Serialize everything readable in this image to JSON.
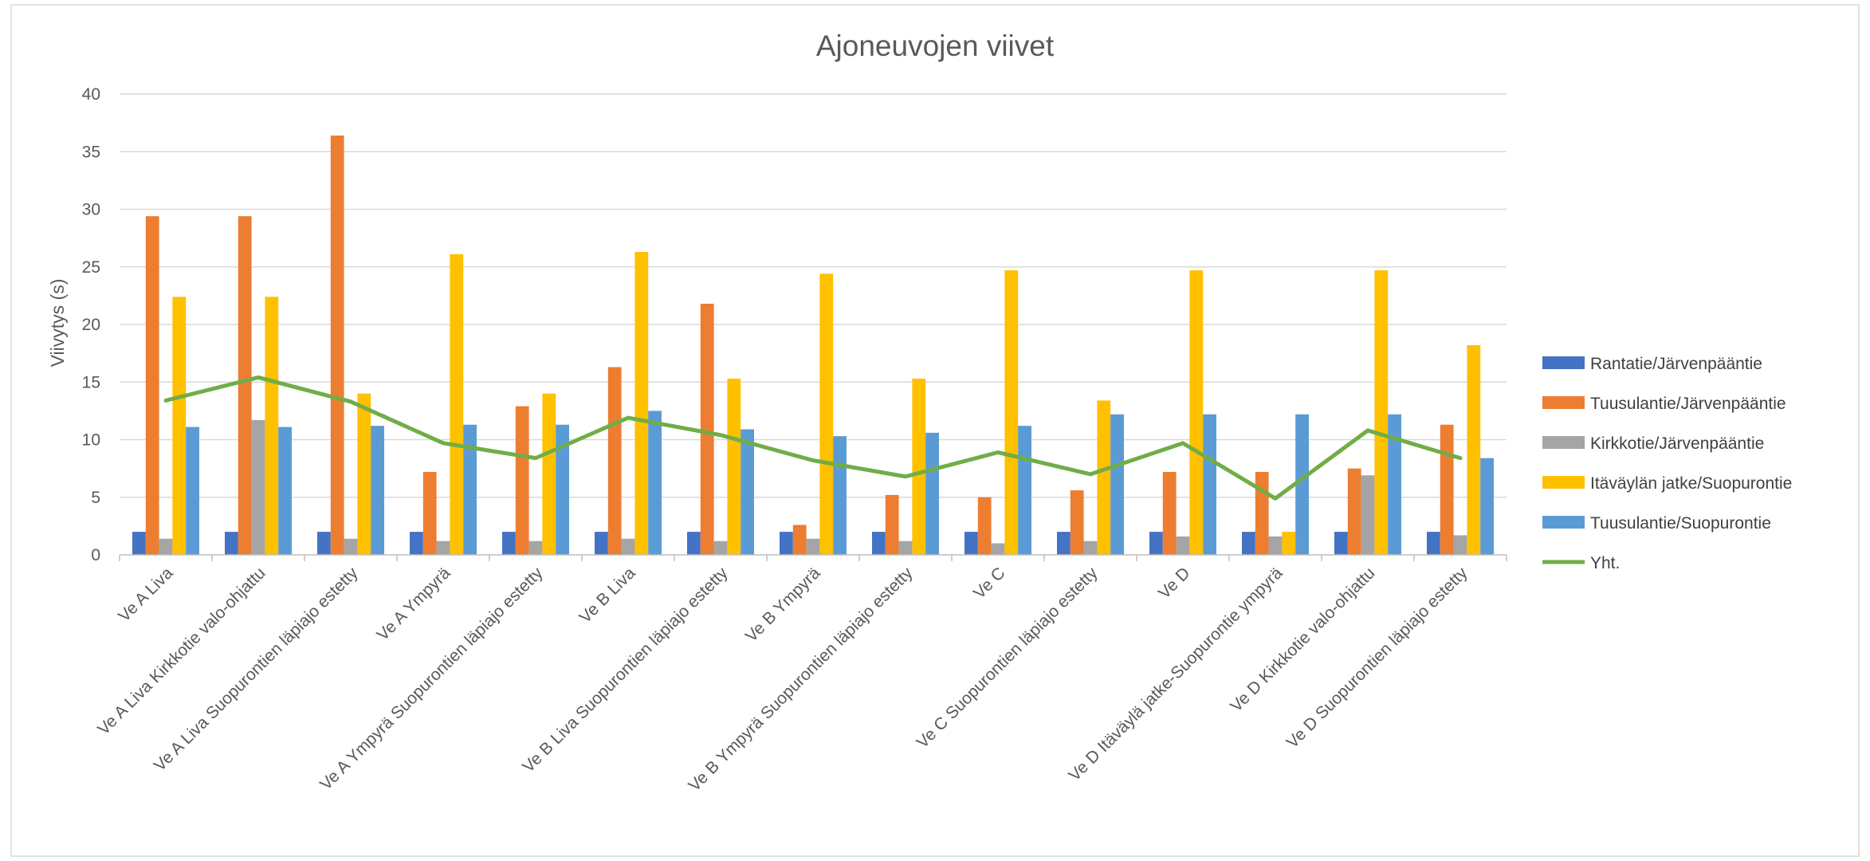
{
  "chart_data": {
    "type": "bar",
    "title": "Ajoneuvojen viivet",
    "ylabel": "Viivytys (s)",
    "xlabel": "",
    "ylim": [
      0,
      40
    ],
    "yticks": [
      "0",
      "5",
      "10",
      "15",
      "20",
      "25",
      "30",
      "35",
      "40"
    ],
    "grid": true,
    "legend_position": "right",
    "categories": [
      "Ve A Liva",
      "Ve A Liva Kirkkotie valo-ohjattu",
      "Ve A Liva Suopurontien läpiajo estetty",
      "Ve A Ympyrä",
      "Ve A Ympyrä Suopurontien läpiajo estetty",
      "Ve B Liva",
      "Ve B Liva Suopurontien läpiajo estetty",
      "Ve B Ympyrä",
      "Ve B Ympyrä Suopurontien läpiajo estetty",
      "Ve C",
      "Ve C Suopurontien läpiajo estetty",
      "Ve D",
      "Ve D Itäväylä jatke-Suopurontie ympyrä",
      "Ve D Kirkkotie valo-ohjattu",
      "Ve D Suopurontien läpiajo estetty"
    ],
    "series": [
      {
        "name": "Rantatie/Järvenpääntie",
        "kind": "bar",
        "color": "#4472c4",
        "values": [
          2,
          2,
          2,
          2,
          2,
          2,
          2,
          2,
          2,
          2,
          2,
          2,
          2,
          2,
          2
        ]
      },
      {
        "name": "Tuusulantie/Järvenpääntie",
        "kind": "bar",
        "color": "#ed7d31",
        "values": [
          29.4,
          29.4,
          36.4,
          7.2,
          12.9,
          16.3,
          21.8,
          2.6,
          5.2,
          5.0,
          5.6,
          7.2,
          7.2,
          7.5,
          11.3
        ]
      },
      {
        "name": "Kirkkotie/Järvenpääntie",
        "kind": "bar",
        "color": "#a5a5a5",
        "values": [
          1.4,
          11.7,
          1.4,
          1.2,
          1.2,
          1.4,
          1.2,
          1.4,
          1.2,
          1.0,
          1.2,
          1.6,
          1.6,
          6.9,
          1.7
        ]
      },
      {
        "name": "Itäväylän jatke/Suopurontie",
        "kind": "bar",
        "color": "#ffc000",
        "values": [
          22.4,
          22.4,
          14.0,
          26.1,
          14.0,
          26.3,
          15.3,
          24.4,
          15.3,
          24.7,
          13.4,
          24.7,
          2.0,
          24.7,
          18.2
        ]
      },
      {
        "name": "Tuusulantie/Suopurontie",
        "kind": "bar",
        "color": "#5b9bd5",
        "values": [
          11.1,
          11.1,
          11.2,
          11.3,
          11.3,
          12.5,
          10.9,
          10.3,
          10.6,
          11.2,
          12.2,
          12.2,
          12.2,
          12.2,
          8.4
        ]
      },
      {
        "name": "Yht.",
        "kind": "line",
        "color": "#70ad47",
        "values": [
          13.4,
          15.4,
          13.3,
          9.7,
          8.4,
          11.9,
          10.4,
          8.2,
          6.8,
          8.9,
          7.0,
          9.7,
          4.9,
          10.8,
          8.4
        ]
      }
    ]
  }
}
